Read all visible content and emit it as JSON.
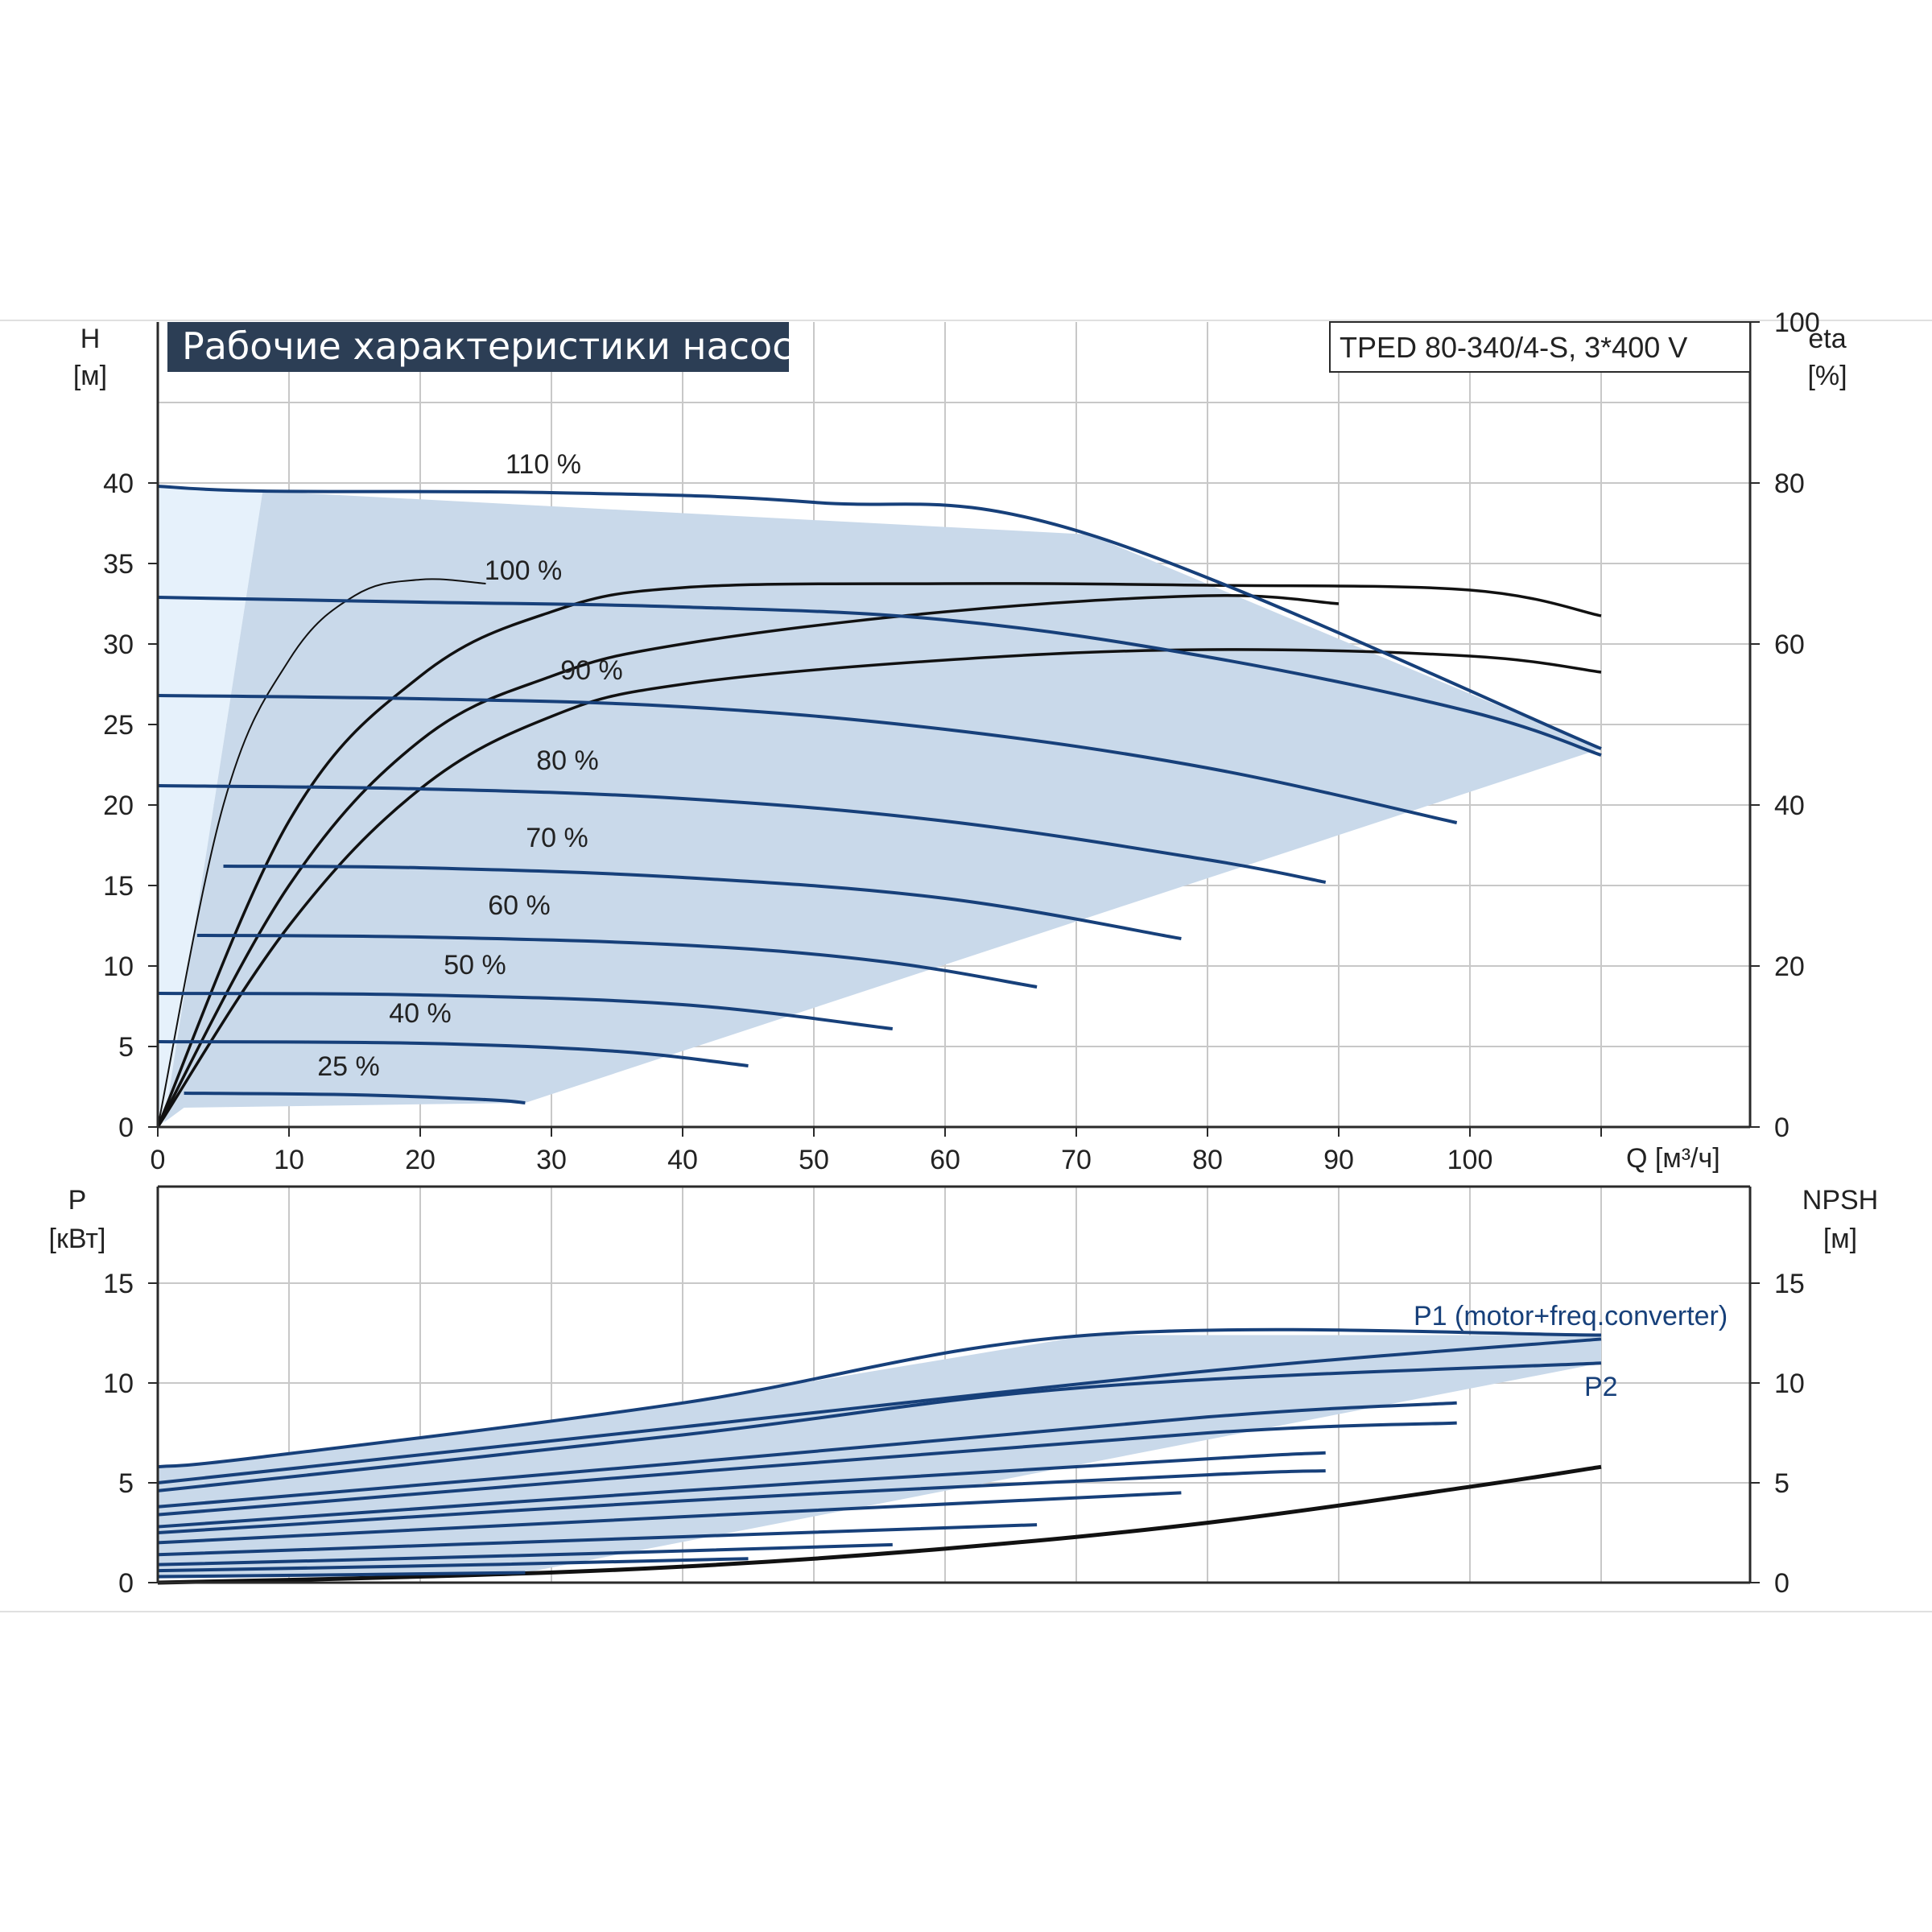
{
  "colors": {
    "grid": "#c8c8c8",
    "axis": "#2a2a2a",
    "curve": "#17407a",
    "black_curve": "#111111",
    "envelope": "#c9d9ea",
    "envelope_light": "#e6f1fb",
    "title_bg": "#2c3e55",
    "p1_text": "#17407a"
  },
  "chart_data": [
    {
      "type": "line",
      "title": "Рабочие характеристики насоса",
      "model_label": "TPED 80-340/4-S, 3*400 V",
      "ylabel_left": "H",
      "ylabel_left_unit": "[м]",
      "ylabel_right": "eta",
      "ylabel_right_unit": "[%]",
      "xlabel": "Q [м³/ч]",
      "xlim": [
        0,
        120
      ],
      "ylim": [
        0,
        45
      ],
      "y_right_ticks": [
        0,
        20,
        40,
        60,
        80,
        100
      ],
      "x_ticks": [
        0,
        10,
        20,
        30,
        40,
        50,
        60,
        70,
        80,
        90,
        100
      ],
      "y_ticks": [
        0,
        5,
        10,
        15,
        20,
        25,
        30,
        35,
        40
      ],
      "grid": true,
      "series": [
        {
          "name": "110 %",
          "x": [
            0,
            8,
            30,
            50,
            71,
            110
          ],
          "y": [
            39.8,
            39.5,
            39.4,
            38.8,
            36.8,
            23.5
          ]
        },
        {
          "name": "100 %",
          "x": [
            0,
            20,
            40,
            60,
            80,
            100,
            110
          ],
          "y": [
            32.9,
            32.6,
            32.3,
            31.5,
            29.2,
            25.8,
            23.1
          ]
        },
        {
          "name": "90 %",
          "x": [
            0,
            20,
            40,
            60,
            80,
            99
          ],
          "y": [
            26.8,
            26.6,
            26.1,
            24.7,
            22.3,
            18.9
          ]
        },
        {
          "name": "80 %",
          "x": [
            0,
            20,
            40,
            60,
            80,
            89
          ],
          "y": [
            21.2,
            21.0,
            20.4,
            19.0,
            16.6,
            15.2
          ]
        },
        {
          "name": "70 %",
          "x": [
            5,
            20,
            40,
            60,
            78
          ],
          "y": [
            16.2,
            16.1,
            15.5,
            14.2,
            11.7
          ]
        },
        {
          "name": "60 %",
          "x": [
            3,
            20,
            40,
            55,
            67
          ],
          "y": [
            11.9,
            11.8,
            11.3,
            10.3,
            8.7
          ]
        },
        {
          "name": "50 %",
          "x": [
            0,
            20,
            40,
            56
          ],
          "y": [
            8.3,
            8.2,
            7.6,
            6.1
          ]
        },
        {
          "name": "40 %",
          "x": [
            0,
            20,
            35,
            45
          ],
          "y": [
            5.3,
            5.2,
            4.7,
            3.8
          ]
        },
        {
          "name": "25 %",
          "x": [
            2,
            15,
            25,
            28
          ],
          "y": [
            2.1,
            2.0,
            1.7,
            1.5
          ]
        }
      ],
      "eta_series": [
        {
          "x": [
            0,
            5,
            10,
            15,
            20,
            25
          ],
          "y": [
            0,
            40,
            58,
            66,
            68,
            67.5
          ]
        },
        {
          "x": [
            0,
            10,
            20,
            30,
            40,
            60,
            80,
            100,
            110
          ],
          "y": [
            0,
            38,
            56,
            64,
            67,
            67.5,
            67.3,
            66.7,
            63.5
          ]
        },
        {
          "x": [
            0,
            10,
            20,
            30,
            40,
            60,
            80,
            100,
            110
          ],
          "y": [
            0,
            25,
            42,
            51,
            55,
            58,
            59.3,
            58.5,
            56.5
          ]
        },
        {
          "x": [
            0,
            10,
            20,
            30,
            40,
            60,
            80,
            90
          ],
          "y": [
            0,
            30,
            48,
            56,
            60,
            64,
            66,
            65
          ]
        }
      ]
    },
    {
      "type": "line",
      "ylabel_left": "P",
      "ylabel_left_unit": "[кВт]",
      "ylabel_right": "NPSH",
      "ylabel_right_unit": "[м]",
      "xlim": [
        0,
        120
      ],
      "ylim": [
        0,
        20
      ],
      "y_ticks": [
        0,
        5,
        10,
        15
      ],
      "y_right_ticks": [
        0,
        5,
        10,
        15
      ],
      "labels": {
        "p1": "P1 (motor+freq.converter)",
        "p2": "P2"
      },
      "series": [
        {
          "name": "P1 110 %",
          "x": [
            0,
            8,
            40,
            71,
            110
          ],
          "y": [
            5.8,
            6.3,
            9.0,
            12.4,
            12.4
          ]
        },
        {
          "name": "P1 100 %",
          "x": [
            0,
            40,
            80,
            110
          ],
          "y": [
            5.0,
            7.8,
            10.6,
            12.2
          ]
        },
        {
          "name": "P2 100 %",
          "x": [
            0,
            40,
            71,
            110
          ],
          "y": [
            4.6,
            7.4,
            9.8,
            11.0
          ]
        },
        {
          "name": "P1 90 %",
          "x": [
            0,
            40,
            80,
            99
          ],
          "y": [
            3.8,
            6.0,
            8.3,
            9.0
          ]
        },
        {
          "name": "P2 90 %",
          "x": [
            0,
            40,
            80,
            99
          ],
          "y": [
            3.4,
            5.5,
            7.5,
            8.0
          ]
        },
        {
          "name": "P1 80 %",
          "x": [
            0,
            40,
            80,
            89
          ],
          "y": [
            2.8,
            4.6,
            6.2,
            6.5
          ]
        },
        {
          "name": "P2 80 %",
          "x": [
            0,
            40,
            80,
            89
          ],
          "y": [
            2.5,
            4.1,
            5.4,
            5.6
          ]
        },
        {
          "name": "P1 70 %",
          "x": [
            0,
            40,
            78
          ],
          "y": [
            2.0,
            3.3,
            4.5
          ]
        },
        {
          "name": "P1 60 %",
          "x": [
            0,
            40,
            67
          ],
          "y": [
            1.4,
            2.3,
            2.9
          ]
        },
        {
          "name": "P1 50 %",
          "x": [
            0,
            30,
            56
          ],
          "y": [
            0.9,
            1.4,
            1.9
          ]
        },
        {
          "name": "P1 40 %",
          "x": [
            0,
            25,
            45
          ],
          "y": [
            0.6,
            0.9,
            1.2
          ]
        },
        {
          "name": "P1 25 %",
          "x": [
            0,
            15,
            28
          ],
          "y": [
            0.3,
            0.4,
            0.5
          ]
        }
      ],
      "npsh_series": {
        "x": [
          0,
          20,
          40,
          60,
          80,
          100,
          110
        ],
        "y": [
          0.0,
          0.3,
          0.8,
          1.7,
          3.0,
          4.8,
          5.8
        ]
      }
    }
  ]
}
